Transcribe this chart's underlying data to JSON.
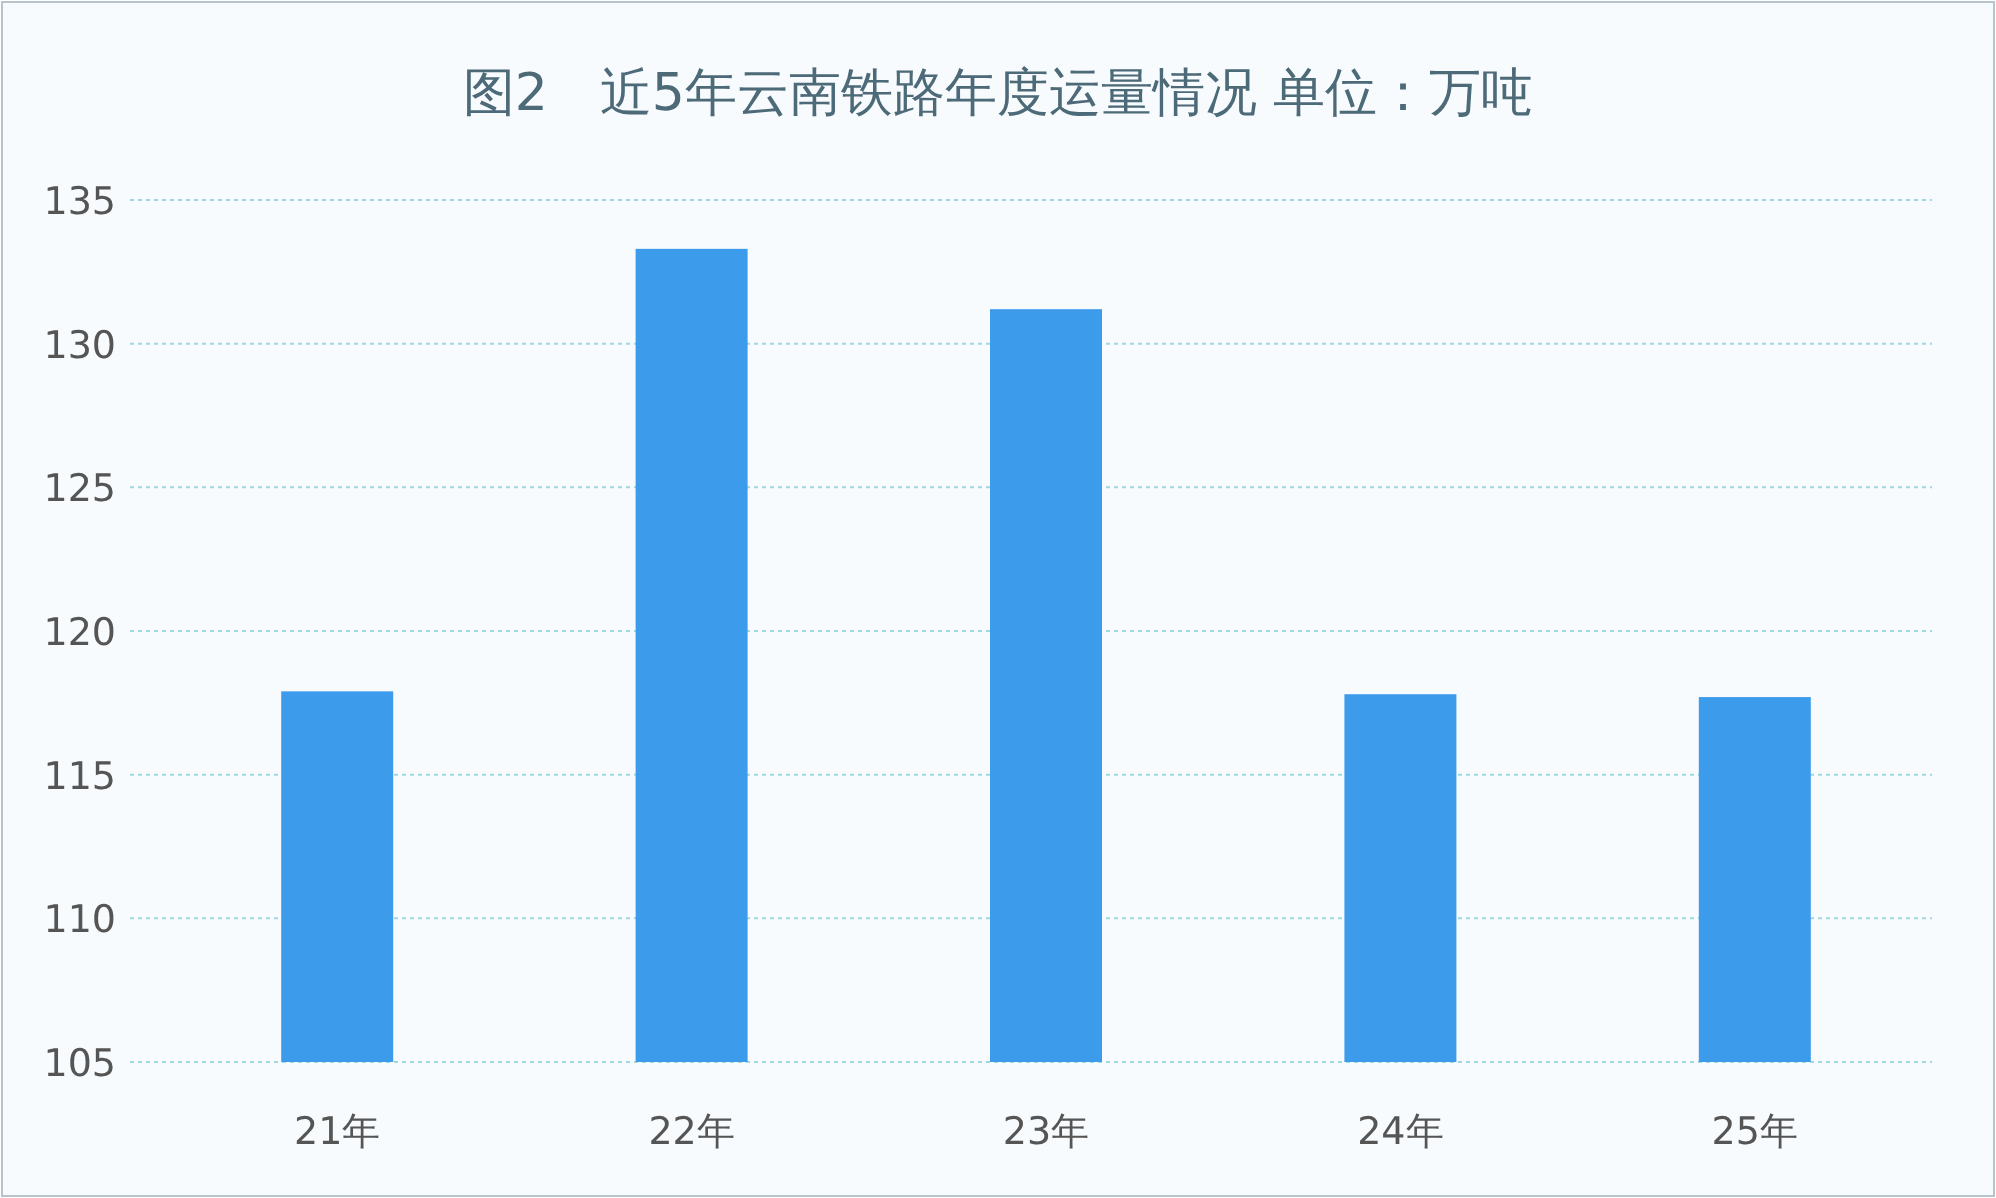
{
  "chart_data": {
    "type": "bar",
    "title": "图2　近5年云南铁路年度运量情况  单位：万吨",
    "categories": [
      "21年",
      "22年",
      "23年",
      "24年",
      "25年"
    ],
    "values": [
      117.9,
      133.3,
      131.2,
      117.8,
      117.7
    ],
    "color": "#3d9bec",
    "ylim": [
      105,
      135
    ],
    "yticks": [
      105,
      110,
      115,
      120,
      125,
      130,
      135
    ],
    "grid": "y"
  }
}
